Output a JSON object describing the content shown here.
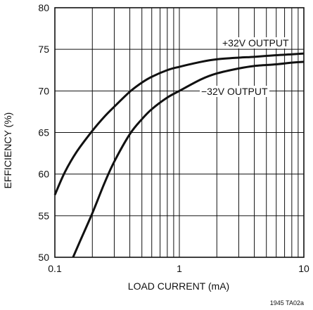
{
  "chart_data": {
    "type": "line",
    "title": "",
    "xlabel": "LOAD CURRENT (mA)",
    "ylabel": "EFFICIENCY (%)",
    "xscale": "log",
    "xlim": [
      0.1,
      10
    ],
    "ylim": [
      50,
      80
    ],
    "grid": true,
    "x_tick_labels": [
      "0.1",
      "1",
      "10"
    ],
    "x_tick_values": [
      0.1,
      1,
      10
    ],
    "y_tick_labels": [
      "50",
      "55",
      "60",
      "65",
      "70",
      "75",
      "80"
    ],
    "y_tick_values": [
      50,
      55,
      60,
      65,
      70,
      75,
      80
    ],
    "series": [
      {
        "name": "+32V OUTPUT",
        "x": [
          0.1,
          0.12,
          0.15,
          0.2,
          0.25,
          0.3,
          0.4,
          0.5,
          0.6,
          0.8,
          1.0,
          1.5,
          2,
          3,
          4,
          6,
          8,
          10
        ],
        "y": [
          57.5,
          60.2,
          62.7,
          65.2,
          66.9,
          68.1,
          69.9,
          71.0,
          71.7,
          72.5,
          72.9,
          73.5,
          73.8,
          74.0,
          74.1,
          74.3,
          74.4,
          74.5
        ]
      },
      {
        "name": "−32V OUTPUT",
        "x": [
          0.14,
          0.16,
          0.2,
          0.25,
          0.3,
          0.4,
          0.5,
          0.6,
          0.8,
          1.0,
          1.5,
          2,
          3,
          4,
          6,
          8,
          10
        ],
        "y": [
          50.0,
          52.0,
          55.3,
          58.9,
          61.5,
          64.8,
          66.6,
          67.8,
          69.2,
          70.0,
          71.4,
          72.1,
          72.7,
          73.0,
          73.2,
          73.4,
          73.5
        ]
      }
    ],
    "footnote": "1945 TA02a"
  }
}
